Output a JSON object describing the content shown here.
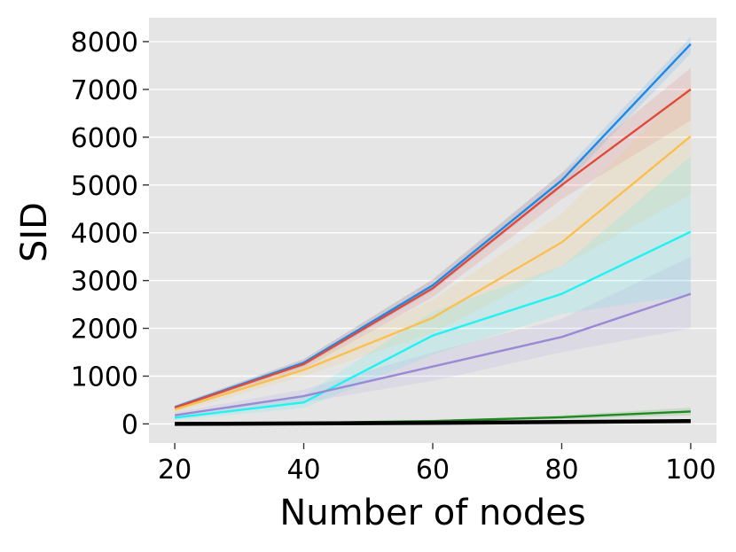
{
  "chart_data": {
    "type": "line",
    "xlabel": "Number of nodes",
    "ylabel": "SID",
    "x": [
      20,
      40,
      60,
      80,
      100
    ],
    "xlim": [
      16,
      104
    ],
    "ylim": [
      -400,
      8500
    ],
    "xticks": [
      "20",
      "40",
      "60",
      "80",
      "100"
    ],
    "yticks": [
      "0",
      "1000",
      "2000",
      "3000",
      "4000",
      "5000",
      "6000",
      "7000",
      "8000"
    ],
    "grid": true,
    "legend": "none",
    "series": [
      {
        "color": "#1e88e5",
        "values": [
          350,
          1280,
          2900,
          5100,
          7950
        ],
        "lower": [
          310,
          1200,
          2780,
          4950,
          7750
        ],
        "upper": [
          390,
          1360,
          3020,
          5250,
          8100
        ]
      },
      {
        "color": "#e04a3a",
        "values": [
          340,
          1250,
          2840,
          5000,
          7000
        ],
        "lower": [
          300,
          1150,
          2650,
          4700,
          6350
        ],
        "upper": [
          380,
          1350,
          3030,
          5250,
          7450
        ]
      },
      {
        "color": "#fbbf4f",
        "values": [
          300,
          1130,
          2220,
          3800,
          6020
        ],
        "lower": [
          230,
          1000,
          1900,
          3300,
          4800
        ],
        "upper": [
          370,
          1260,
          2600,
          4400,
          7100
        ]
      },
      {
        "color": "#22f2f2",
        "values": [
          130,
          450,
          1850,
          2720,
          4020
        ],
        "lower": [
          80,
          330,
          1450,
          2300,
          2700
        ],
        "upper": [
          190,
          600,
          2350,
          3300,
          5600
        ]
      },
      {
        "color": "#9a8ad6",
        "values": [
          180,
          580,
          1200,
          1820,
          2720
        ],
        "lower": [
          120,
          450,
          900,
          1500,
          2000
        ],
        "upper": [
          240,
          720,
          1500,
          2200,
          3500
        ]
      },
      {
        "color": "#1f8a1f",
        "values": [
          0,
          20,
          60,
          140,
          260
        ],
        "lower": [
          0,
          10,
          40,
          100,
          180
        ],
        "upper": [
          10,
          30,
          80,
          180,
          340
        ]
      },
      {
        "color": "#000000",
        "values": [
          0,
          10,
          20,
          40,
          60
        ],
        "lower": [
          0,
          5,
          10,
          25,
          45
        ],
        "upper": [
          5,
          15,
          30,
          55,
          75
        ]
      }
    ]
  }
}
